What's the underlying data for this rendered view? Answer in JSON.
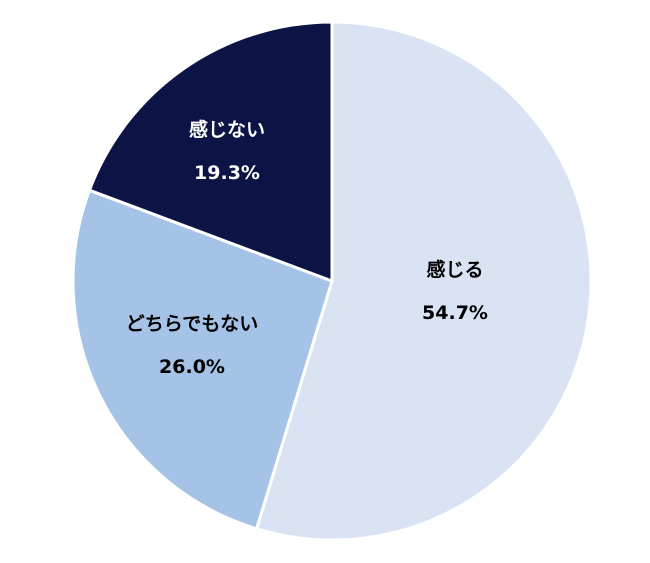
{
  "chart_data": {
    "type": "pie",
    "start_angle": "12 o'clock",
    "direction": "clockwise",
    "legend": "none",
    "slices": [
      {
        "label": "感じる",
        "value": 54.7,
        "value_label": "54.7%",
        "color": "#dae3f3",
        "text_color": "#000000"
      },
      {
        "label": "どちらでもない",
        "value": 26.0,
        "value_label": "26.0%",
        "color": "#a5c3e6",
        "text_color": "#000000"
      },
      {
        "label": "感じない",
        "value": 19.3,
        "value_label": "19.3%",
        "color": "#0c1445",
        "text_color": "#ffffff"
      }
    ]
  }
}
